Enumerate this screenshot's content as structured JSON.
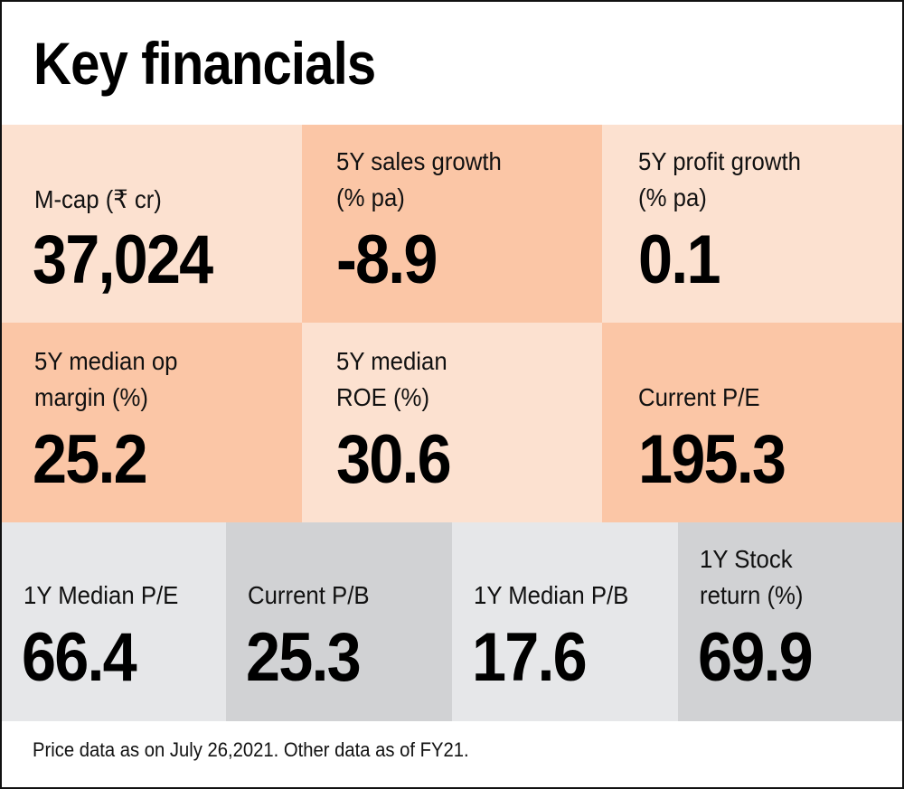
{
  "title": "Key financials",
  "colors": {
    "light_peach": "#fce1d0",
    "dark_peach": "#fbc6a6",
    "light_grey": "#e6e7e9",
    "dark_grey": "#d1d2d4"
  },
  "row1": [
    {
      "label_lines": [
        "M-cap (₹ cr)"
      ],
      "value": "37,024"
    },
    {
      "label_lines": [
        "5Y sales growth",
        "(% pa)"
      ],
      "value": "-8.9"
    },
    {
      "label_lines": [
        "5Y profit growth",
        "(% pa)"
      ],
      "value": "0.1"
    }
  ],
  "row2": [
    {
      "label_lines": [
        "5Y median op",
        "margin (%)"
      ],
      "value": "25.2"
    },
    {
      "label_lines": [
        "5Y median",
        "ROE (%)"
      ],
      "value": "30.6"
    },
    {
      "label_lines": [
        "Current P/E"
      ],
      "value": "195.3"
    }
  ],
  "row3": [
    {
      "label_lines": [
        "1Y Median P/E"
      ],
      "value": "66.4"
    },
    {
      "label_lines": [
        "Current P/B"
      ],
      "value": "25.3"
    },
    {
      "label_lines": [
        "1Y Median P/B"
      ],
      "value": "17.6"
    },
    {
      "label_lines": [
        "1Y Stock",
        "return (%)"
      ],
      "value": "69.9"
    }
  ],
  "footer": "Price data as on July 26,2021. Other data as of FY21."
}
